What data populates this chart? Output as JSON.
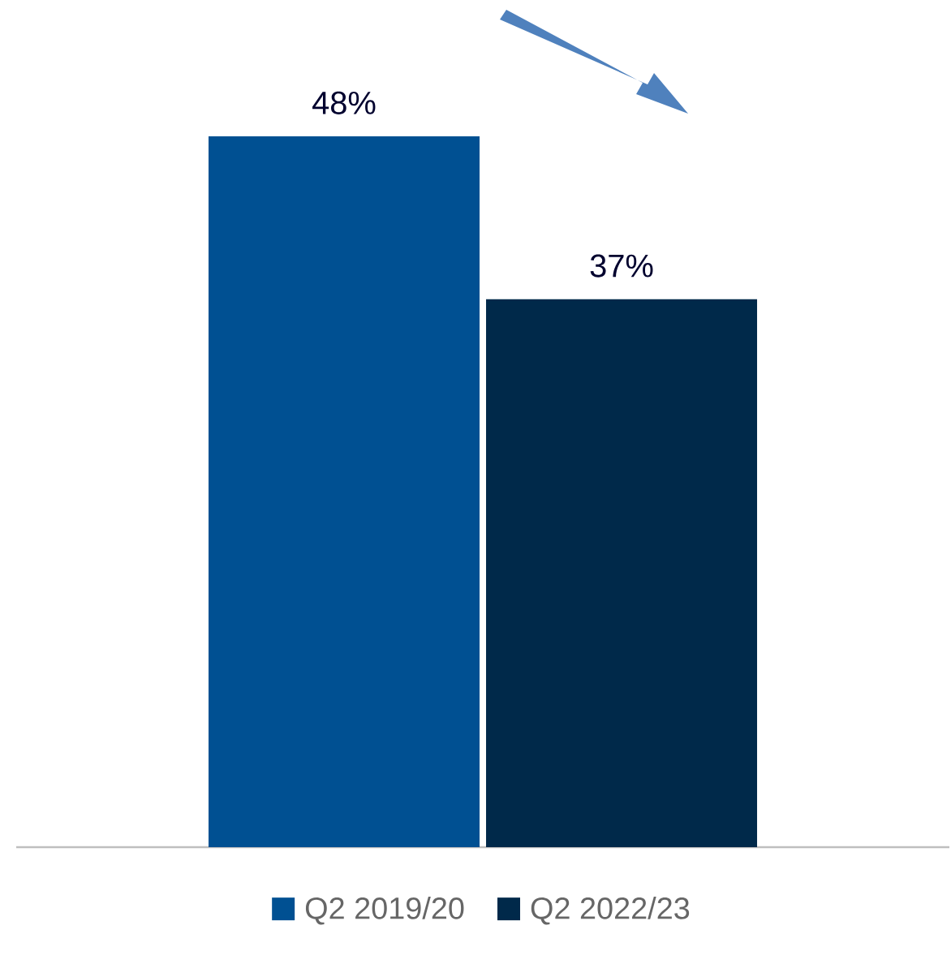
{
  "chart_data": {
    "type": "bar",
    "categories": [
      null
    ],
    "series": [
      {
        "name": "Q2 2019/20",
        "color": "#005092",
        "values": [
          48
        ],
        "value_labels": [
          "48%"
        ]
      },
      {
        "name": "Q2 2022/23",
        "color": "#00294a",
        "values": [
          37
        ],
        "value_labels": [
          "37%"
        ]
      }
    ],
    "legend": "bottom"
  }
}
